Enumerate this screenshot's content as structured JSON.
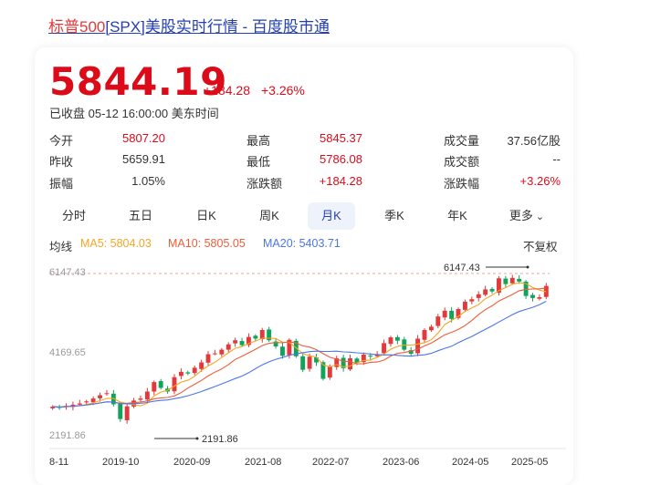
{
  "header": {
    "link_prefix": "标普500",
    "link_rest": "[SPX]美股实时行情 - 百度股市通"
  },
  "quote": {
    "price": "5844.19",
    "change": "+184.28",
    "change_pct": "+3.26%",
    "status": "已收盘 05-12 16:00:00 美东时间"
  },
  "stats": [
    {
      "label": "今开",
      "value": "5807.20"
    },
    {
      "label": "最高",
      "value": "5845.37"
    },
    {
      "label": "成交量",
      "value": "37.56亿股"
    },
    {
      "label": "昨收",
      "value": "5659.91"
    },
    {
      "label": "最低",
      "value": "5786.08"
    },
    {
      "label": "成交额",
      "value": "--"
    },
    {
      "label": "振幅",
      "value": "1.05%"
    },
    {
      "label": "涨跌额",
      "value": "+184.28"
    },
    {
      "label": "涨跌幅",
      "value": "+3.26%"
    }
  ],
  "tabs": [
    "分时",
    "五日",
    "日K",
    "周K",
    "月K",
    "季K",
    "年K",
    "更多"
  ],
  "active_tab": "月K",
  "indicators": {
    "label": "均线",
    "ma5": "MA5: 5804.03",
    "ma10": "MA10: 5805.05",
    "ma20": "MA20: 5403.71",
    "adjust": "不复权"
  },
  "colors": {
    "up": "#e23a3a",
    "down": "#11a35a",
    "ma5": "#f5a623",
    "ma10": "#f05c38",
    "ma20": "#4a76e8",
    "link": "#2440b3"
  },
  "chart_data": {
    "type": "candlestick",
    "y_ticks": [
      "6147.43",
      "4169.65",
      "2191.86"
    ],
    "x_ticks": [
      "8-11",
      "2019-10",
      "2020-09",
      "2021-08",
      "2022-07",
      "2023-06",
      "2024-05",
      "2025-05"
    ],
    "ylim": [
      2191.86,
      6147.43
    ],
    "max_annotation": "6147.43",
    "min_annotation": "2191.86",
    "close": [
      2900,
      2880,
      2920,
      2950,
      2980,
      3030,
      3100,
      3180,
      3230,
      2960,
      2600,
      2910,
      3050,
      3100,
      3270,
      3500,
      3360,
      3270,
      3620,
      3750,
      3710,
      3850,
      3980,
      4180,
      4200,
      4290,
      4420,
      4520,
      4400,
      4600,
      4560,
      4770,
      4520,
      4370,
      4140,
      4530,
      4130,
      3800,
      4120,
      3980,
      3580,
      3880,
      4080,
      3840,
      4080,
      3970,
      4170,
      4130,
      4180,
      4450,
      4590,
      4510,
      4290,
      4190,
      4560,
      4770,
      4850,
      5100,
      5240,
      5040,
      5280,
      5460,
      5520,
      5640,
      5760,
      5710,
      6030,
      5890,
      6040,
      5950,
      5600,
      5550,
      5570,
      5844
    ]
  }
}
